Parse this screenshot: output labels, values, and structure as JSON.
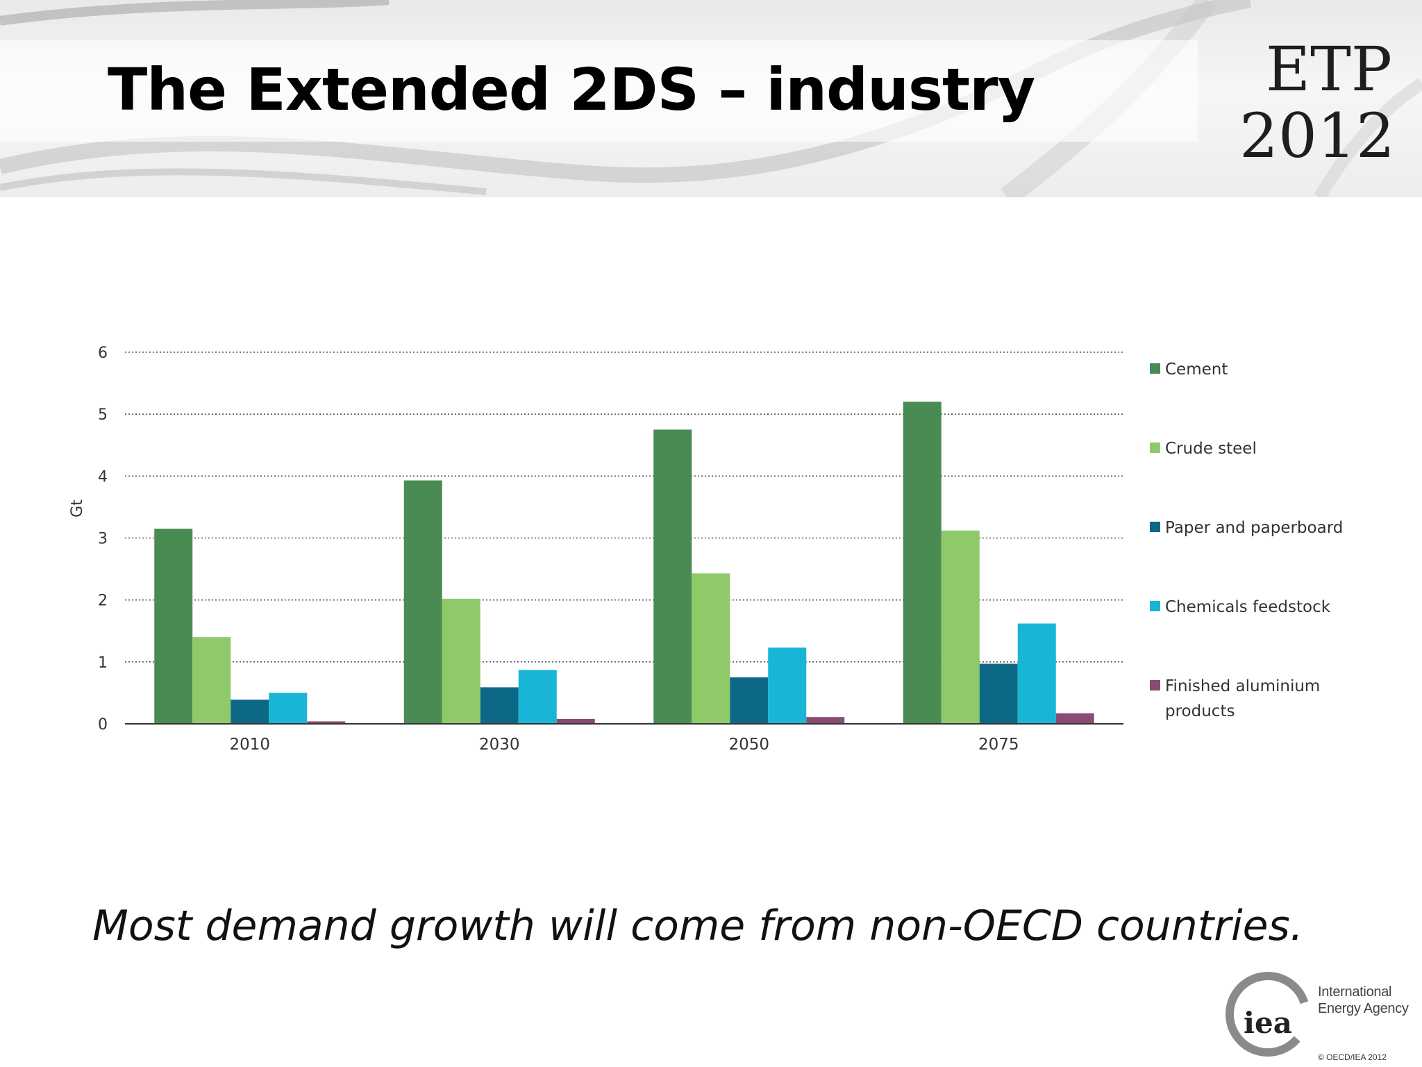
{
  "slide": {
    "title": "The Extended 2DS – industry",
    "logo_line1": "ETP",
    "logo_line2": "2012",
    "caption": "Most demand growth will come from non-OECD countries.",
    "iea_mark": "iea",
    "iea_name_line1": "International",
    "iea_name_line2": "Energy Agency",
    "copyright": "© OECD/IEA 2012"
  },
  "chart_data": {
    "type": "bar",
    "title": "",
    "xlabel": "",
    "ylabel": "Gt",
    "ylim": [
      0,
      6
    ],
    "yticks": [
      0,
      1,
      2,
      3,
      4,
      5,
      6
    ],
    "grid": true,
    "legend_position": "right",
    "categories": [
      "2010",
      "2030",
      "2050",
      "2075"
    ],
    "series": [
      {
        "name": "Cement",
        "color": "#4a8b53",
        "values": [
          3.15,
          3.93,
          4.75,
          5.2
        ]
      },
      {
        "name": "Crude steel",
        "color": "#8fca6a",
        "values": [
          1.4,
          2.02,
          2.43,
          3.12
        ]
      },
      {
        "name": "Paper and paperboard",
        "color": "#0d6886",
        "values": [
          0.39,
          0.59,
          0.75,
          0.97
        ]
      },
      {
        "name": "Chemicals feedstock",
        "color": "#18b5d6",
        "values": [
          0.5,
          0.87,
          1.23,
          1.62
        ]
      },
      {
        "name": "Finished aluminium products",
        "color": "#8a4b72",
        "values": [
          0.04,
          0.08,
          0.11,
          0.17
        ]
      }
    ]
  }
}
